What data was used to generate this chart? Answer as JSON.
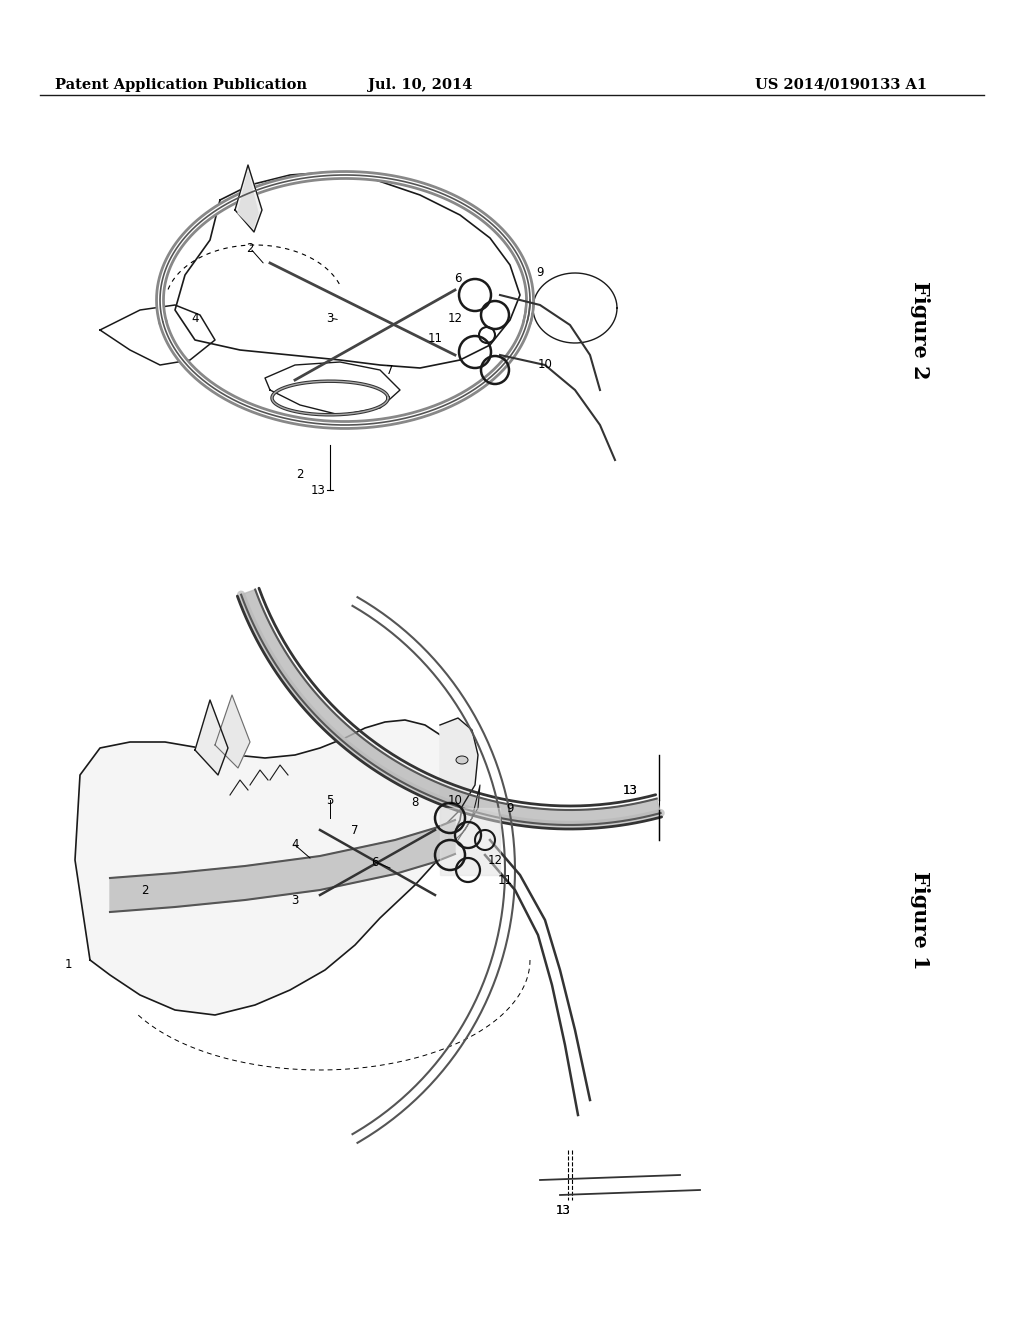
{
  "bg_color": "#ffffff",
  "header_left": "Patent Application Publication",
  "header_center": "Jul. 10, 2014",
  "header_right": "US 2014/0190133 A1",
  "fig1_label": "Figure 1",
  "fig2_label": "Figure 2",
  "header_fontsize": 10.5,
  "label_fontsize": 8.5,
  "figure_label_fontsize": 15,
  "lc": "#1a1a1a"
}
